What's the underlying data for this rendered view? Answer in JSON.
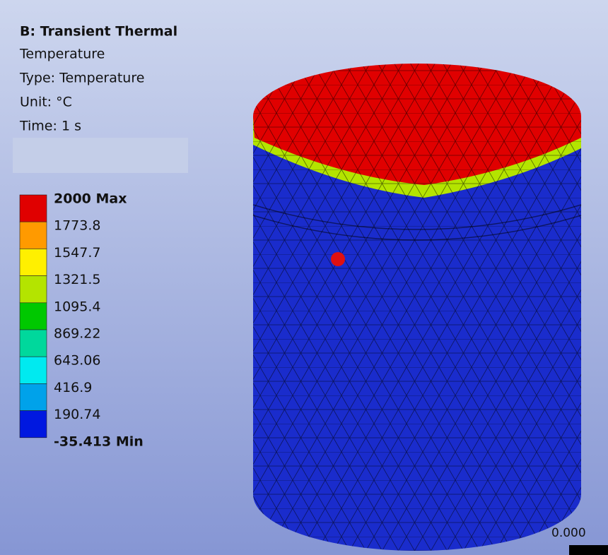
{
  "header": {
    "title": "B: Transient Thermal",
    "lines": [
      "Temperature",
      "Type: Temperature",
      "Unit: °C",
      "Time: 1 s"
    ]
  },
  "legend": {
    "labels": [
      "2000 Max",
      "1773.8",
      "1547.7",
      "1321.5",
      "1095.4",
      "869.22",
      "643.06",
      "416.9",
      "190.74",
      "-35.413 Min"
    ],
    "colors": [
      "#e00000",
      "#ff9a00",
      "#fff000",
      "#b4e400",
      "#00c800",
      "#00d89c",
      "#00eaf0",
      "#00a2ea",
      "#0018e0"
    ]
  },
  "scale": {
    "label": "0.000"
  }
}
